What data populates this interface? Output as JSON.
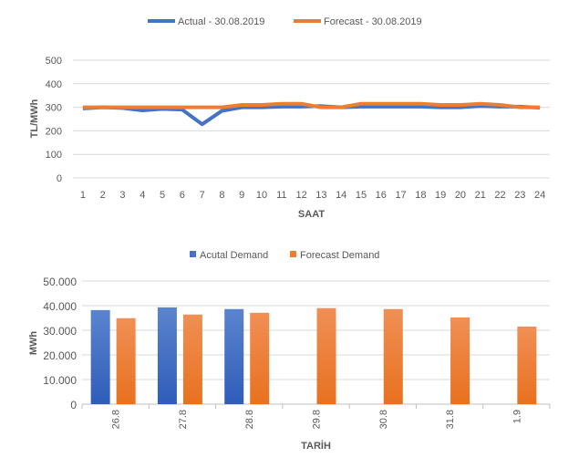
{
  "chart_data": [
    {
      "type": "line",
      "title": "",
      "xlabel": "SAAT",
      "ylabel": "TL/MWh",
      "ylim": [
        0,
        500
      ],
      "yticks": [
        0,
        100,
        200,
        300,
        400,
        500
      ],
      "grid": true,
      "legend_position": "top",
      "x": [
        1,
        2,
        3,
        4,
        5,
        6,
        7,
        8,
        9,
        10,
        11,
        12,
        13,
        14,
        15,
        16,
        17,
        18,
        19,
        20,
        21,
        22,
        23,
        24
      ],
      "series": [
        {
          "name": "Actual - 30.08.2019",
          "color": "#4472c4",
          "values": [
            295,
            300,
            297,
            287,
            293,
            290,
            228,
            285,
            300,
            300,
            303,
            303,
            305,
            300,
            303,
            303,
            303,
            303,
            300,
            300,
            305,
            303,
            303,
            298
          ]
        },
        {
          "name": "Forecast - 30.08.2019",
          "color": "#ed7d31",
          "values": [
            300,
            300,
            300,
            300,
            300,
            300,
            300,
            300,
            310,
            310,
            315,
            315,
            300,
            300,
            315,
            315,
            315,
            315,
            310,
            310,
            315,
            310,
            300,
            300
          ]
        }
      ]
    },
    {
      "type": "bar",
      "title": "",
      "xlabel": "TARİH",
      "ylabel": "MWh",
      "ylim": [
        0,
        50000
      ],
      "yticks": [
        "0",
        "10.000",
        "20.000",
        "30.000",
        "40.000",
        "50.000"
      ],
      "grid": true,
      "legend_position": "top",
      "categories": [
        "26.8",
        "27.8",
        "28.8",
        "29.8",
        "30.8",
        "31.8",
        "1.9"
      ],
      "series": [
        {
          "name": "Acutal Demand",
          "color": "#4472c4",
          "values": [
            38200,
            39300,
            38600,
            null,
            null,
            null,
            null
          ]
        },
        {
          "name": "Forecast Demand",
          "color": "#ed7d31",
          "values": [
            34900,
            36400,
            37100,
            39000,
            38600,
            35200,
            31500
          ]
        }
      ]
    }
  ]
}
